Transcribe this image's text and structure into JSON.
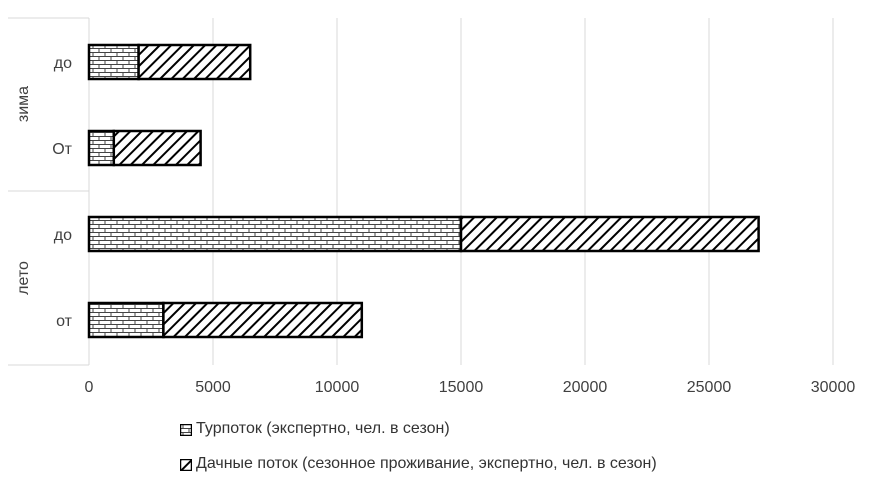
{
  "chart_data": {
    "type": "bar",
    "orientation": "horizontal",
    "stacked": true,
    "groups": [
      {
        "name": "зима",
        "categories": [
          "до",
          "От"
        ]
      },
      {
        "name": "лето",
        "categories": [
          "до",
          "от"
        ]
      }
    ],
    "categories": [
      "зима до",
      "зима От",
      "лето до",
      "лето от"
    ],
    "category_labels": [
      "до",
      "От",
      "до",
      "от"
    ],
    "series": [
      {
        "name": "Турпоток (экспертно, чел. в сезон)",
        "pattern": "bricks",
        "values": [
          2000,
          1000,
          15000,
          3000
        ]
      },
      {
        "name": "Дачные поток (сезонное проживание, экспертно, чел. в сезон)",
        "pattern": "diagonal-hatch",
        "values": [
          4500,
          3500,
          12000,
          8000
        ]
      }
    ],
    "xlim": [
      0,
      30000
    ],
    "xticks": [
      "0",
      "5000",
      "10000",
      "15000",
      "20000",
      "25000",
      "30000"
    ],
    "grid": true,
    "legend_position": "bottom",
    "colors": {
      "grid": "#d9d9d9",
      "bar_stroke": "#000000",
      "axis_text": "#404040"
    }
  }
}
